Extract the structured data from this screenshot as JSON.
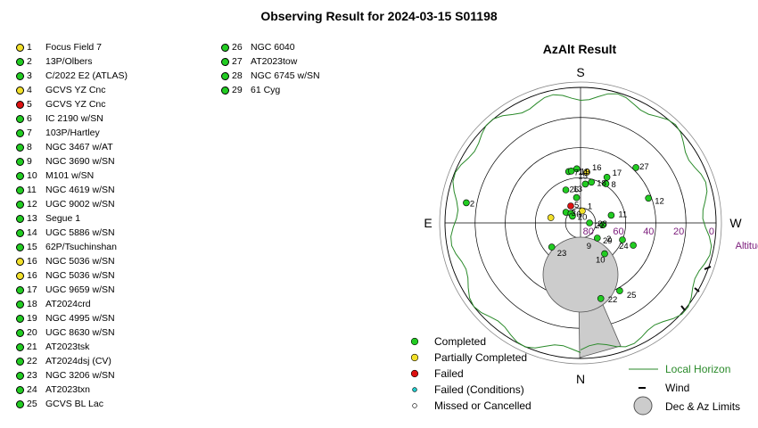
{
  "title": "Observing Result for 2024-03-15 S01198",
  "status_colors": {
    "completed": "#22cc22",
    "partial": "#f2e02a",
    "failed": "#dd1111",
    "failed_conditions": "#22cccc",
    "missed": "#ffffff"
  },
  "targets": [
    {
      "num": "1",
      "name": "Focus Field 7",
      "status": "partial"
    },
    {
      "num": "2",
      "name": "13P/Olbers",
      "status": "completed"
    },
    {
      "num": "3",
      "name": "C/2022 E2 (ATLAS)",
      "status": "completed"
    },
    {
      "num": "4",
      "name": "GCVS YZ Cnc",
      "status": "partial"
    },
    {
      "num": "5",
      "name": "GCVS YZ Cnc",
      "status": "failed"
    },
    {
      "num": "6",
      "name": "IC 2190 w/SN",
      "status": "completed"
    },
    {
      "num": "7",
      "name": "103P/Hartley",
      "status": "completed"
    },
    {
      "num": "8",
      "name": "NGC 3467 w/AT",
      "status": "completed"
    },
    {
      "num": "9",
      "name": "NGC 3690 w/SN",
      "status": "completed"
    },
    {
      "num": "10",
      "name": "M101 w/SN",
      "status": "completed"
    },
    {
      "num": "11",
      "name": "NGC 4619 w/SN",
      "status": "completed"
    },
    {
      "num": "12",
      "name": "UGC 9002 w/SN",
      "status": "completed"
    },
    {
      "num": "13",
      "name": "Segue 1",
      "status": "completed"
    },
    {
      "num": "14",
      "name": "UGC 5886 w/SN",
      "status": "completed"
    },
    {
      "num": "15",
      "name": "62P/Tsuchinshan",
      "status": "completed"
    },
    {
      "num": "16",
      "name": "NGC 5036 w/SN",
      "status": "partial"
    },
    {
      "num": "16",
      "name": "NGC 5036 w/SN",
      "status": "partial"
    },
    {
      "num": "17",
      "name": "UGC 9659 w/SN",
      "status": "completed"
    },
    {
      "num": "18",
      "name": "AT2024crd",
      "status": "completed"
    },
    {
      "num": "19",
      "name": "NGC 4995 w/SN",
      "status": "completed"
    },
    {
      "num": "20",
      "name": "UGC 8630 w/SN",
      "status": "completed"
    },
    {
      "num": "21",
      "name": "AT2023tsk",
      "status": "completed"
    },
    {
      "num": "22",
      "name": "AT2024dsj (CV)",
      "status": "completed"
    },
    {
      "num": "23",
      "name": "NGC 3206 w/SN",
      "status": "completed"
    },
    {
      "num": "24",
      "name": "AT2023txn",
      "status": "completed"
    },
    {
      "num": "25",
      "name": "GCVS BL Lac",
      "status": "completed"
    },
    {
      "num": "26",
      "name": "NGC 6040",
      "status": "completed"
    },
    {
      "num": "27",
      "name": "AT2023tow",
      "status": "completed"
    },
    {
      "num": "28",
      "name": "NGC 6745 w/SN",
      "status": "completed"
    },
    {
      "num": "29",
      "name": "61 Cyg",
      "status": "completed"
    }
  ],
  "chart_data": {
    "type": "scatter",
    "title": "AzAlt Result",
    "projection": "polar-azimuth-altitude",
    "altitude_label": "Altitude",
    "altitude_rings": [
      0,
      20,
      40,
      60,
      80
    ],
    "altitude_tick_labels": [
      "0",
      "20",
      "40",
      "60",
      "80"
    ],
    "directions": {
      "top": "S",
      "bottom": "N",
      "left": "E",
      "right": "W"
    },
    "points": [
      {
        "label": "1",
        "az": 172,
        "alt": 82,
        "status": "partial"
      },
      {
        "label": "2",
        "az": 260,
        "alt": 13,
        "status": "completed"
      },
      {
        "label": "3",
        "az": 234,
        "alt": 78,
        "status": "completed"
      },
      {
        "label": "4",
        "az": 260,
        "alt": 70,
        "status": "partial"
      },
      {
        "label": "5",
        "az": 210,
        "alt": 77,
        "status": "failed"
      },
      {
        "label": "6",
        "az": 225,
        "alt": 81,
        "status": "completed"
      },
      {
        "label": "7",
        "az": 193,
        "alt": 55,
        "status": "completed"
      },
      {
        "label": "8",
        "az": 147,
        "alt": 59,
        "status": "completed"
      },
      {
        "label": "9",
        "az": 48,
        "alt": 75,
        "status": "completed"
      },
      {
        "label": "10",
        "az": 38,
        "alt": 64,
        "status": "completed"
      },
      {
        "label": "11",
        "az": 104,
        "alt": 69,
        "status": "completed"
      },
      {
        "label": "12",
        "az": 110,
        "alt": 42,
        "status": "completed"
      },
      {
        "label": "13",
        "az": 204,
        "alt": 66,
        "status": "completed"
      },
      {
        "label": "14",
        "az": 190,
        "alt": 55,
        "status": "completed"
      },
      {
        "label": "15",
        "az": 173,
        "alt": 64,
        "status": "completed"
      },
      {
        "label": "16a",
        "az": 173,
        "alt": 56,
        "status": "partial"
      },
      {
        "label": "16b",
        "az": 173,
        "alt": 56,
        "status": "partial"
      },
      {
        "label": "17",
        "az": 150,
        "alt": 55,
        "status": "completed"
      },
      {
        "label": "18",
        "az": 165,
        "alt": 62,
        "status": "completed"
      },
      {
        "label": "19",
        "az": 184,
        "alt": 54,
        "status": "completed"
      },
      {
        "label": "20",
        "az": 230,
        "alt": 83,
        "status": "completed"
      },
      {
        "label": "21",
        "az": 90,
        "alt": 84,
        "status": "completed"
      },
      {
        "label": "22",
        "az": 15,
        "alt": 38,
        "status": "completed"
      },
      {
        "label": "23",
        "az": 310,
        "alt": 65,
        "status": "completed"
      },
      {
        "label": "24",
        "az": 67,
        "alt": 52,
        "status": "completed"
      },
      {
        "label": "25",
        "az": 30,
        "alt": 38,
        "status": "completed"
      },
      {
        "label": "26",
        "az": 189,
        "alt": 73,
        "status": "completed"
      },
      {
        "label": "27",
        "az": 135,
        "alt": 38,
        "status": "completed"
      },
      {
        "label": "28",
        "az": 85,
        "alt": 75,
        "status": "completed"
      },
      {
        "label": "29",
        "az": 68,
        "alt": 60,
        "status": "completed"
      }
    ],
    "point_labels": [
      {
        "text": "1"
      },
      {
        "text": "2"
      },
      {
        "text": "3"
      },
      {
        "text": "5"
      },
      {
        "text": "6"
      },
      {
        "text": "7"
      },
      {
        "text": "8"
      },
      {
        "text": "9"
      },
      {
        "text": "10"
      },
      {
        "text": "11"
      },
      {
        "text": "12"
      },
      {
        "text": "13"
      },
      {
        "text": "14"
      },
      {
        "text": "15"
      },
      {
        "text": "16"
      },
      {
        "text": "17"
      },
      {
        "text": "18"
      },
      {
        "text": "19"
      },
      {
        "text": "20"
      },
      {
        "text": "21"
      },
      {
        "text": "22"
      },
      {
        "text": "23"
      },
      {
        "text": "24"
      },
      {
        "text": "25"
      },
      {
        "text": "26"
      },
      {
        "text": "27"
      },
      {
        "text": "28"
      },
      {
        "text": "29"
      },
      {
        "text": "2"
      }
    ],
    "local_horizon_color": "#2a8a2a",
    "limits_fill_color": "#cccccc",
    "legend": [
      {
        "label": "Completed",
        "status": "completed"
      },
      {
        "label": "Partially Completed",
        "status": "partial"
      },
      {
        "label": "Failed",
        "status": "failed"
      },
      {
        "label": "Failed (Conditions)",
        "status": "failed_conditions"
      },
      {
        "label": "Missed or Cancelled",
        "status": "missed"
      }
    ],
    "legend_right": [
      {
        "label": "Local Horizon",
        "symbol": "line"
      },
      {
        "label": "Wind",
        "symbol": "tick"
      },
      {
        "label": "Dec & Az Limits",
        "symbol": "disk"
      }
    ]
  }
}
